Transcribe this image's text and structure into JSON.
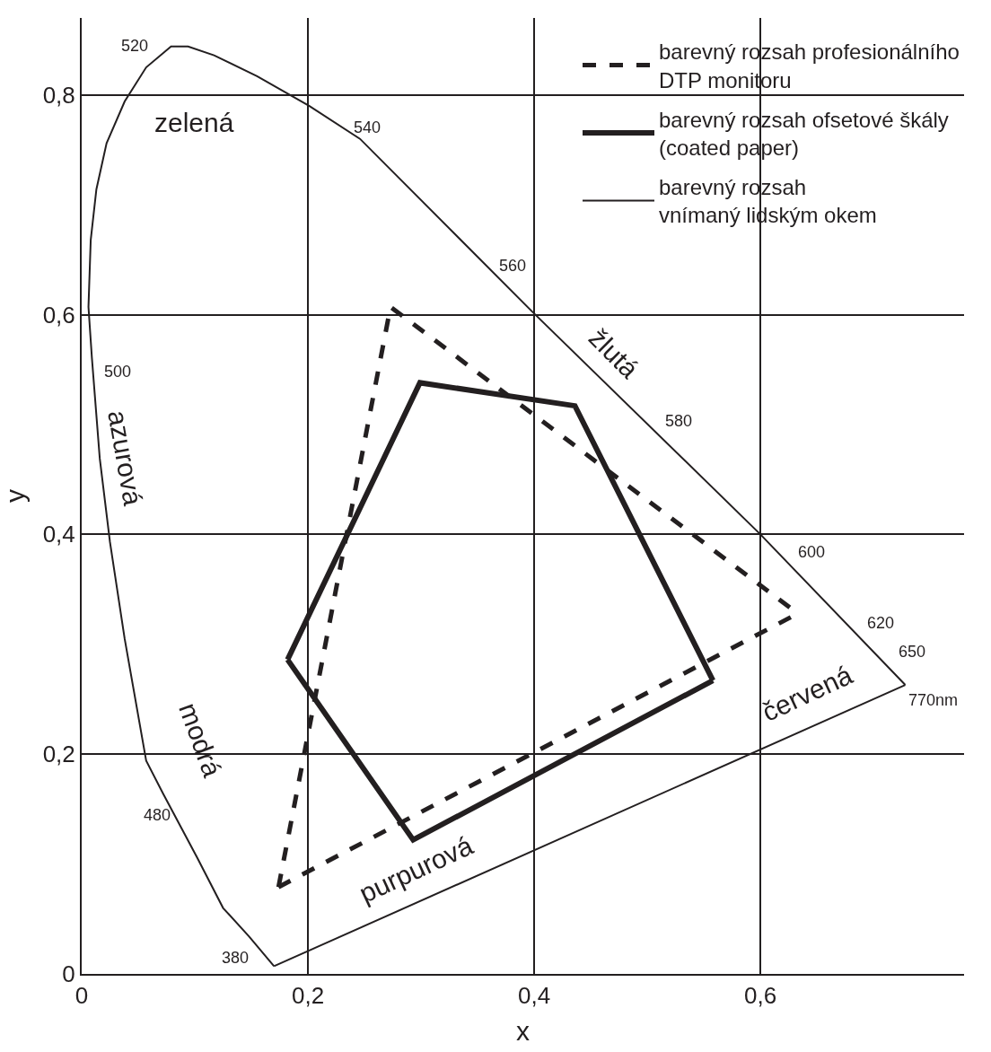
{
  "chart_data": {
    "type": "line",
    "xlabel": "x",
    "ylabel": "y",
    "xlim": [
      0,
      0.78
    ],
    "ylim": [
      0,
      0.87
    ],
    "xticks": [
      0,
      {
        "value": 0.2,
        "label": "0,2"
      },
      {
        "value": 0.4,
        "label": "0,4"
      },
      {
        "value": 0.6,
        "label": "0,6"
      }
    ],
    "yticks": [
      0,
      {
        "value": 0.2,
        "label": "0,2"
      },
      {
        "value": 0.4,
        "label": "0,4"
      },
      {
        "value": 0.6,
        "label": "0,6"
      },
      {
        "value": 0.8,
        "label": "0,8"
      }
    ],
    "grid": true,
    "legend": "top right",
    "marker": "none",
    "series": [
      {
        "name": "barevný rozsah profesionálního\nDTP monitoru",
        "color": "#231f20",
        "line_style": "dashed",
        "x": [
          0.174,
          0.273,
          0.633
        ],
        "values": [
          0.079,
          0.607,
          0.328
        ]
      },
      {
        "color": "#231f20",
        "line_style": "dashed",
        "x": [
          0.174,
          0.633
        ],
        "values": [
          0.079,
          0.328
        ]
      },
      {
        "name": "barevný rozsah ofsetové škály\n(coated paper)",
        "color": "#231f20",
        "line_style": "solid",
        "x": [
          0.182,
          0.299,
          0.436,
          0.558
        ],
        "values": [
          0.286,
          0.538,
          0.517,
          0.267
        ]
      },
      {
        "color": "#231f20",
        "line_style": "solid",
        "x": [
          0.182,
          0.293,
          0.558
        ],
        "values": [
          0.286,
          0.122,
          0.267
        ]
      },
      {
        "name": "barevný rozsah\nvnímaný lidským okem",
        "color": "#231f20",
        "line_style": "solid",
        "x": [
          0.17,
          0.148,
          0.125,
          0.102,
          0.072,
          0.057,
          0.038,
          0.025,
          0.016,
          0.009,
          0.006,
          0.008,
          0.013,
          0.022,
          0.038,
          0.057,
          0.079,
          0.094,
          0.117,
          0.155,
          0.201,
          0.246,
          0.398,
          0.6,
          0.728
        ],
        "values": [
          0.007,
          0.034,
          0.06,
          0.106,
          0.164,
          0.194,
          0.305,
          0.393,
          0.469,
          0.561,
          0.607,
          0.668,
          0.714,
          0.756,
          0.794,
          0.825,
          0.844,
          0.844,
          0.836,
          0.817,
          0.79,
          0.76,
          0.603,
          0.4,
          0.263
        ]
      },
      {
        "color": "#231f20",
        "line_style": "solid",
        "x": [
          0.17,
          0.728
        ],
        "values": [
          0.007,
          0.263
        ]
      }
    ],
    "annotations": [
      "520",
      "540",
      "560",
      "580",
      "600",
      "620",
      "650",
      "770nm",
      "500",
      "480",
      "380",
      "zelená",
      "azurová",
      "modrá",
      "purpurová",
      "červená",
      "žlutá"
    ]
  }
}
